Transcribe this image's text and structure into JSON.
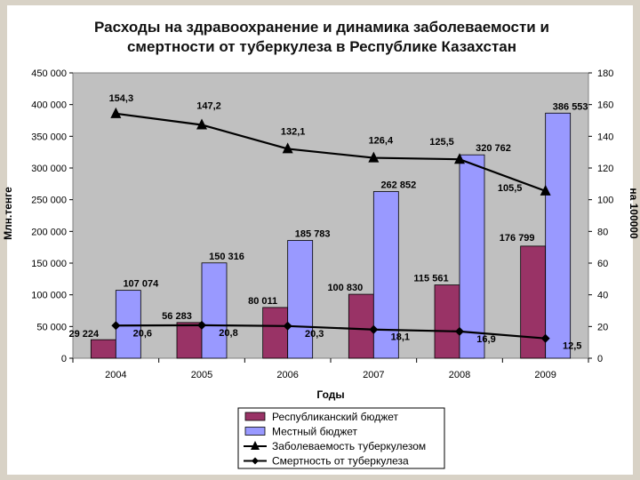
{
  "chart_data": {
    "type": "bar",
    "title_lines": [
      "Расходы на здравоохранение и динамика заболеваемости и",
      "смертности от туберкулеза в Республике Казахстан"
    ],
    "categories": [
      "2004",
      "2005",
      "2006",
      "2007",
      "2008",
      "2009"
    ],
    "xlabel": "Годы",
    "ylabel_left": "Млн.тенге",
    "ylabel_right": "на 100000",
    "ylim_left": [
      0,
      450000
    ],
    "ylim_right": [
      0,
      180
    ],
    "yticks_left": [
      "0",
      "50 000",
      "100 000",
      "150 000",
      "200 000",
      "250 000",
      "300 000",
      "350 000",
      "400 000",
      "450 000"
    ],
    "yticks_right": [
      "0",
      "20",
      "40",
      "60",
      "80",
      "100",
      "120",
      "140",
      "160",
      "180"
    ],
    "series": [
      {
        "name": "Республиканский бюджет",
        "kind": "bar",
        "axis": "left",
        "color": "#993366",
        "values": [
          29224,
          56283,
          80011,
          100830,
          115561,
          176799
        ],
        "labels": [
          "29 224",
          "56 283",
          "80 011",
          "100 830",
          "115 561",
          "176 799"
        ]
      },
      {
        "name": "Местный бюджет",
        "kind": "bar",
        "axis": "left",
        "color": "#9999ff",
        "values": [
          107074,
          150316,
          185783,
          262852,
          320762,
          386553
        ],
        "labels": [
          "107 074",
          "150 316",
          "185 783",
          "262 852",
          "320 762",
          "386 553"
        ]
      },
      {
        "name": "Заболеваемость туберкулезом",
        "kind": "line",
        "marker": "triangle",
        "axis": "right",
        "color": "#000000",
        "values": [
          154.3,
          147.2,
          132.1,
          126.4,
          125.5,
          105.5
        ],
        "labels": [
          "154,3",
          "147,2",
          "132,1",
          "126,4",
          "125,5",
          "105,5"
        ]
      },
      {
        "name": "Смертность от туберкулеза",
        "kind": "line",
        "marker": "diamond",
        "axis": "right",
        "color": "#000000",
        "values": [
          20.6,
          20.8,
          20.3,
          18.1,
          16.9,
          12.5
        ],
        "labels": [
          "20,6",
          "20,8",
          "20,3",
          "18,1",
          "16,9",
          "12,5"
        ]
      }
    ],
    "plot_background": "#c0c0c0",
    "legend_position": "bottom"
  }
}
